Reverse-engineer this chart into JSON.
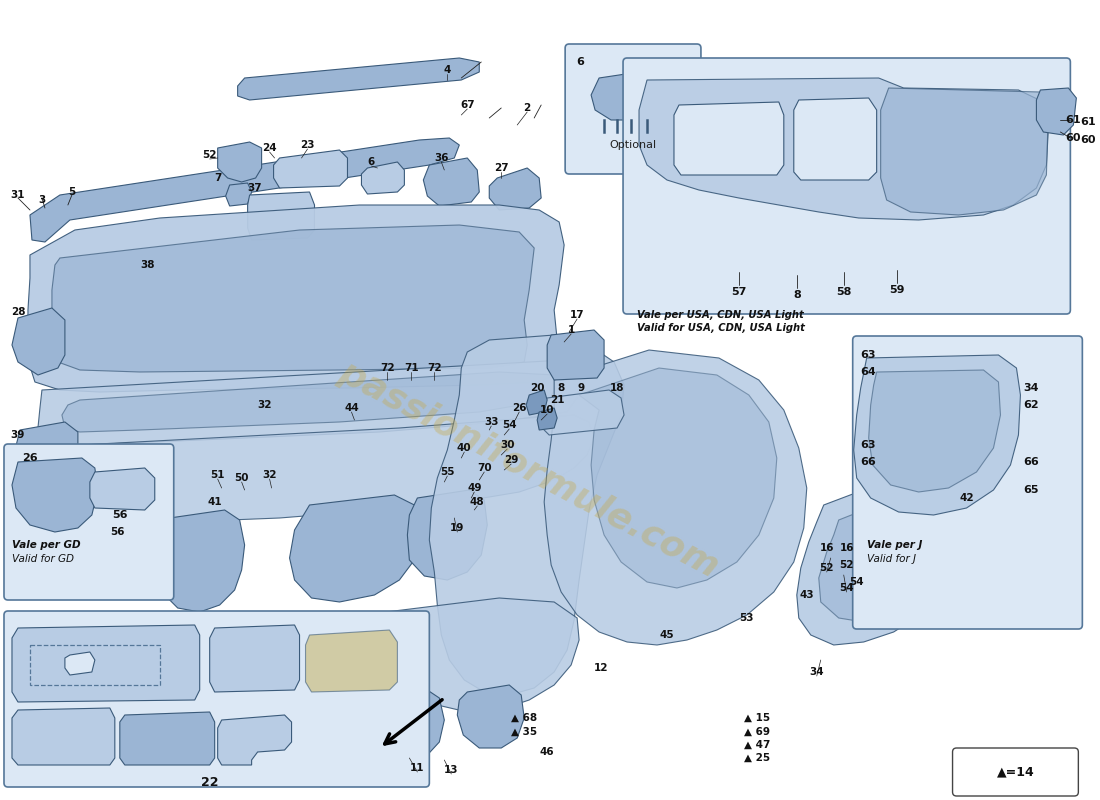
{
  "bg": "#ffffff",
  "lc": "#b8cce4",
  "mc": "#9bb5d4",
  "dc": "#7a99be",
  "ec": "#3a5a7a",
  "wm_text": "passioniformule.com",
  "wm_color": "#c8a840",
  "wm_alpha": 0.35,
  "legend_text": "▲=14",
  "note_usa1": "Vale per USA, CDN, USA Light",
  "note_usa2": "Valid for USA, CDN, USA Light",
  "note_j1": "Vale per J",
  "note_j2": "Valid for J",
  "note_gd1": "Vale per GD",
  "note_gd2": "Valid for GD",
  "note_opt": "Optional"
}
